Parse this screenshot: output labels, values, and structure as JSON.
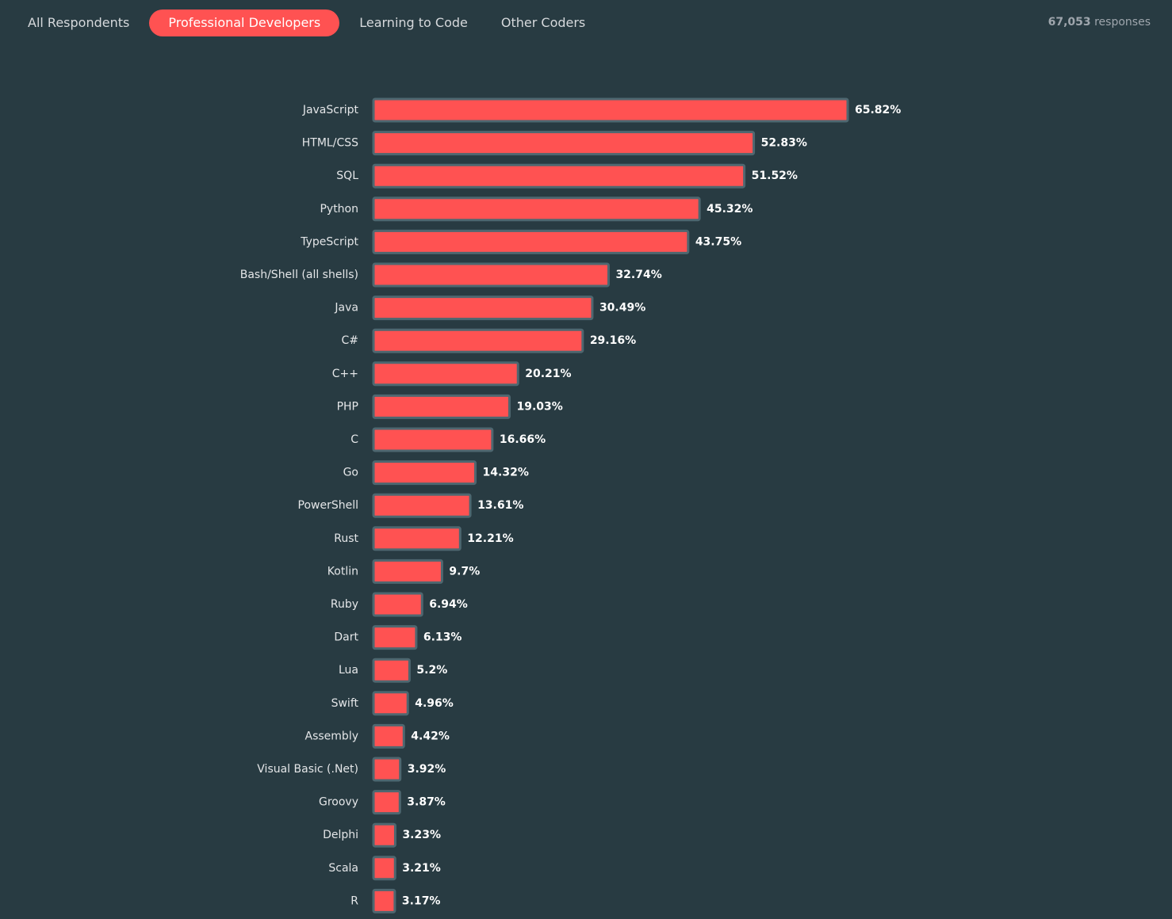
{
  "tabs": [
    {
      "label": "All Respondents",
      "active": false
    },
    {
      "label": "Professional Developers",
      "active": true
    },
    {
      "label": "Learning to Code",
      "active": false
    },
    {
      "label": "Other Coders",
      "active": false
    }
  ],
  "responses": {
    "count": "67,053",
    "label": "responses"
  },
  "colors": {
    "background": "#283b42",
    "bar": "#ff5252",
    "bar_border": "#4e6770",
    "active_tab": "#ff5252"
  },
  "chart_data": {
    "type": "bar",
    "orientation": "horizontal",
    "unit": "%",
    "categories": [
      "JavaScript",
      "HTML/CSS",
      "SQL",
      "Python",
      "TypeScript",
      "Bash/Shell (all shells)",
      "Java",
      "C#",
      "C++",
      "PHP",
      "C",
      "Go",
      "PowerShell",
      "Rust",
      "Kotlin",
      "Ruby",
      "Dart",
      "Lua",
      "Swift",
      "Assembly",
      "Visual Basic (.Net)",
      "Groovy",
      "Delphi",
      "Scala",
      "R"
    ],
    "values": [
      65.82,
      52.83,
      51.52,
      45.32,
      43.75,
      32.74,
      30.49,
      29.16,
      20.21,
      19.03,
      16.66,
      14.32,
      13.61,
      12.21,
      9.7,
      6.94,
      6.13,
      5.2,
      4.96,
      4.42,
      3.92,
      3.87,
      3.23,
      3.21,
      3.17
    ],
    "value_labels": [
      "65.82%",
      "52.83%",
      "51.52%",
      "45.32%",
      "43.75%",
      "32.74%",
      "30.49%",
      "29.16%",
      "20.21%",
      "19.03%",
      "16.66%",
      "14.32%",
      "13.61%",
      "12.21%",
      "9.7%",
      "6.94%",
      "6.13%",
      "5.2%",
      "4.96%",
      "4.42%",
      "3.92%",
      "3.87%",
      "3.23%",
      "3.21%",
      "3.17%"
    ],
    "xlim": [
      0,
      65.82
    ],
    "grid": false,
    "legend": "none"
  }
}
